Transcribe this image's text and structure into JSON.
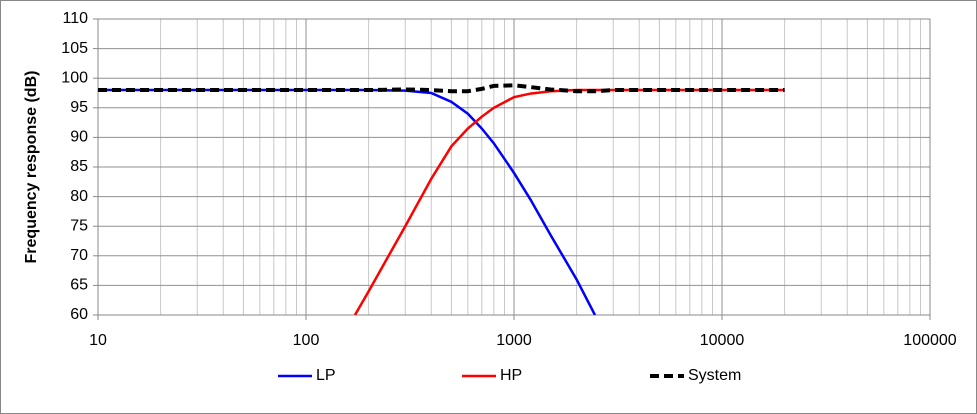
{
  "chart_data": {
    "type": "line",
    "y_label": "Frequency response (dB)",
    "x": [
      10,
      20,
      50,
      100,
      172,
      200,
      300,
      400,
      500,
      600,
      700,
      800,
      1000,
      1200,
      1500,
      2000,
      2450,
      3000,
      5000,
      10000,
      20000
    ],
    "series": [
      {
        "name": "LP",
        "color": "#0000ff",
        "dash": false,
        "values": [
          98,
          98,
          98,
          98,
          98,
          98,
          97.9,
          97.5,
          96,
          94,
          91.5,
          89,
          84,
          79.5,
          73.5,
          66,
          60,
          null,
          null,
          null,
          null
        ]
      },
      {
        "name": "HP",
        "color": "#ff0000",
        "dash": false,
        "values": [
          null,
          null,
          null,
          null,
          60,
          64,
          75,
          83,
          88.5,
          91.5,
          93.5,
          95,
          96.8,
          97.4,
          97.8,
          98,
          98,
          98,
          98,
          98,
          98
        ]
      },
      {
        "name": "System",
        "color": "#000000",
        "dash": true,
        "values": [
          98,
          98,
          98,
          98,
          98,
          98,
          98.1,
          98,
          97.8,
          97.8,
          98.2,
          98.7,
          98.8,
          98.5,
          98.1,
          97.8,
          97.8,
          98,
          98,
          98,
          98
        ]
      }
    ],
    "xlim": [
      10,
      100000
    ],
    "xticks": [
      10,
      100,
      1000,
      10000,
      100000
    ],
    "xlog": true,
    "ylim": [
      60,
      110
    ],
    "yticks": [
      60,
      65,
      70,
      75,
      80,
      85,
      90,
      95,
      100,
      105,
      110
    ],
    "grid": true,
    "legend": "bottom"
  }
}
